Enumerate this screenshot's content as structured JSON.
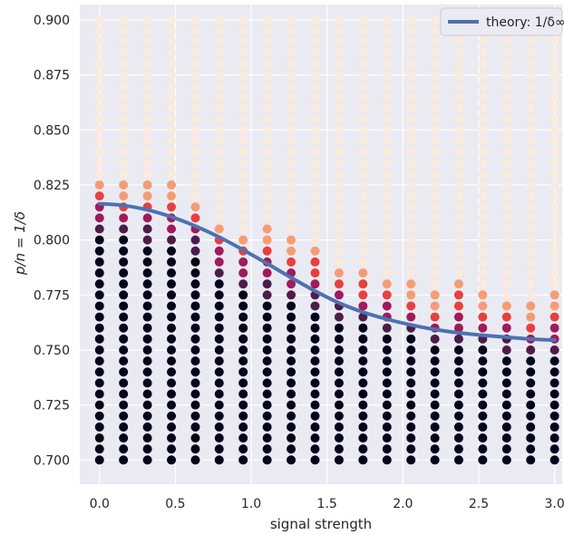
{
  "chart_data": {
    "type": "scatter",
    "title": "",
    "xlabel": "signal strength",
    "ylabel": "p/n = 1/δ",
    "xlim": [
      -0.13,
      3.05
    ],
    "ylim": [
      0.689,
      0.907
    ],
    "xticks": [
      0.0,
      0.5,
      1.0,
      1.5,
      2.0,
      2.5,
      3.0
    ],
    "xtick_labels": [
      "0.0",
      "0.5",
      "1.0",
      "1.5",
      "2.0",
      "2.5",
      "3.0"
    ],
    "yticks": [
      0.7,
      0.725,
      0.75,
      0.775,
      0.8,
      0.825,
      0.85,
      0.875,
      0.9
    ],
    "ytick_labels": [
      "0.700",
      "0.725",
      "0.750",
      "0.775",
      "0.800",
      "0.825",
      "0.850",
      "0.875",
      "0.900"
    ],
    "grid": true,
    "background": "#eaeaf2",
    "legend_position": "top-right",
    "scatter": {
      "x": [
        0.0,
        0.158,
        0.316,
        0.474,
        0.632,
        0.789,
        0.947,
        1.105,
        1.263,
        1.421,
        1.579,
        1.737,
        1.895,
        2.053,
        2.211,
        2.368,
        2.526,
        2.684,
        2.842,
        3.0
      ],
      "y_min": 0.7,
      "y_max": 0.9,
      "y_step": 0.005,
      "dark_top": [
        0.803,
        0.8,
        0.798,
        0.796,
        0.794,
        0.781,
        0.776,
        0.774,
        0.771,
        0.767,
        0.764,
        0.761,
        0.758,
        0.755,
        0.752,
        0.751,
        0.75,
        0.749,
        0.748,
        0.747
      ],
      "color_top": [
        0.835,
        0.833,
        0.834,
        0.835,
        0.826,
        0.817,
        0.812,
        0.817,
        0.808,
        0.808,
        0.796,
        0.794,
        0.787,
        0.787,
        0.782,
        0.793,
        0.782,
        0.781,
        0.776,
        0.782
      ],
      "colormap": [
        "#03051a",
        "#4c1d4b",
        "#a11a5b",
        "#e83f3f",
        "#f69c73",
        "#faebdd"
      ]
    },
    "series": [
      {
        "name": "theory: 1/δ∞",
        "color": "#4c72b0",
        "x": [
          0.0,
          0.158,
          0.316,
          0.474,
          0.632,
          0.789,
          0.947,
          1.105,
          1.263,
          1.421,
          1.579,
          1.737,
          1.895,
          2.053,
          2.211,
          2.368,
          2.526,
          2.684,
          2.842,
          3.0
        ],
        "y": [
          0.8165,
          0.8157,
          0.8137,
          0.8105,
          0.8063,
          0.8013,
          0.7955,
          0.7893,
          0.7829,
          0.7768,
          0.7714,
          0.7672,
          0.764,
          0.7614,
          0.7593,
          0.7578,
          0.7567,
          0.7558,
          0.755,
          0.7545
        ]
      }
    ]
  }
}
